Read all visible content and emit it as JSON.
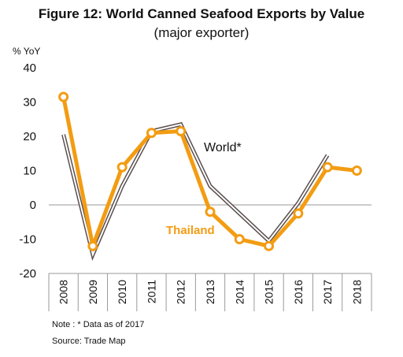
{
  "chart_data": {
    "type": "line",
    "title": "Figure 12: World Canned Seafood Exports  by Value",
    "subtitle": "(major exporter)",
    "ylabel": "% YoY",
    "xlabel": "",
    "categories": [
      "2008",
      "2009",
      "2010",
      "2011",
      "2012",
      "2013",
      "2014",
      "2015",
      "2016",
      "2017",
      "2018"
    ],
    "ylim": [
      -20,
      40
    ],
    "yticks": [
      40,
      30,
      20,
      10,
      0,
      -10,
      -20
    ],
    "grid": false,
    "legend": "none",
    "series": [
      {
        "name": "World*",
        "color": "#5b4f4f",
        "values": [
          20.5,
          -14.5,
          5.5,
          21.5,
          23.5,
          5.5,
          -2.5,
          -10.5,
          0.5,
          14.5,
          null
        ]
      },
      {
        "name": "Thailand",
        "color": "#f39c12",
        "values": [
          31.5,
          -12,
          11,
          21,
          21.5,
          -2,
          -10,
          -12,
          -2.5,
          11,
          10
        ]
      }
    ],
    "annotations": [
      {
        "text": "World*",
        "color": "#5b4f4f"
      },
      {
        "text": "Thailand",
        "color": "#f39c12"
      }
    ]
  },
  "notes": {
    "note": "Note : * Data as of 2017",
    "source": "Source: Trade Map"
  }
}
